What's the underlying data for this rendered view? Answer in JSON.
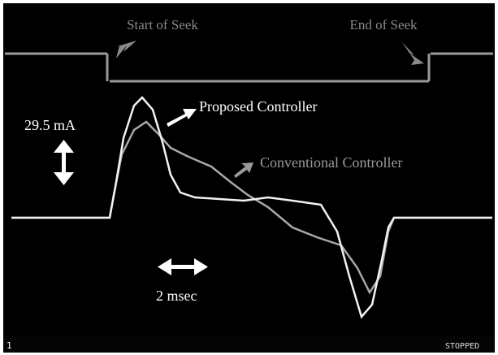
{
  "screen": {
    "top_labels": [
      "Start of Seek",
      "End of Seek"
    ],
    "annotations": {
      "current": "29.5 mA",
      "proposed": "Proposed Controller",
      "conventional": "Conventional Controller",
      "time": "2 msec"
    },
    "status": {
      "channel": "1",
      "state": "STOPPED"
    }
  }
}
